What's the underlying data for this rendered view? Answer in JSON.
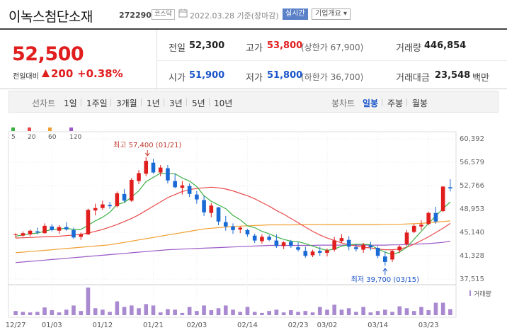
{
  "header": {
    "name": "이녹스첨단소재",
    "code": "272290",
    "market": "코스닥",
    "date": "2022.03.28  기준(장마감)",
    "realtime": "실시간",
    "overview": "기업개요 ▾"
  },
  "summary": {
    "price": "52,500",
    "change_label": "전일대비",
    "change": "200",
    "change_pct": "+0.38%",
    "prev_label": "전일",
    "prev": "52,300",
    "high_label": "고가",
    "high": "53,800",
    "upper_limit": "(상한가 67,900)",
    "volume_label": "거래량",
    "volume": "446,854",
    "open_label": "시가",
    "open": "51,900",
    "low_label": "저가",
    "low": "51,800",
    "lower_limit": "(하한가 36,700)",
    "value_label": "거래대금",
    "value": "23,548",
    "value_unit": "백만"
  },
  "tabs": {
    "line_label": "선차트",
    "periods": [
      "1일",
      "1주일",
      "3개월",
      "1년",
      "3년",
      "5년",
      "10년"
    ],
    "candle_label": "봉차트",
    "candles": [
      "일봉",
      "주봉",
      "월봉"
    ],
    "active_candle": "일봉"
  },
  "colors": {
    "up": "#e01e1e",
    "down": "#1a6ad6",
    "ma5": "#3cb043",
    "ma20": "#e84a4a",
    "ma60": "#f0a032",
    "ma120": "#9b59c6",
    "volume": "#a989cf"
  },
  "chart_data": {
    "type": "candlestick",
    "legend": [
      {
        "name": "5",
        "color": "#3cb043"
      },
      {
        "name": "20",
        "color": "#e84a4a"
      },
      {
        "name": "60",
        "color": "#f0a032"
      },
      {
        "name": "120",
        "color": "#9b59c6"
      }
    ],
    "y_ticks": [
      "60,392",
      "56,579",
      "52,766",
      "48,953",
      "45,140",
      "41,328",
      "37,515"
    ],
    "ylim": [
      37515,
      60392
    ],
    "x_ticks": [
      {
        "label": "12/27",
        "index": 0
      },
      {
        "label": "01/03",
        "index": 5
      },
      {
        "label": "01/12",
        "index": 12
      },
      {
        "label": "01/21",
        "index": 19
      },
      {
        "label": "02/03",
        "index": 25
      },
      {
        "label": "02/14",
        "index": 32
      },
      {
        "label": "02/23",
        "index": 39
      },
      {
        "label": "03/02",
        "index": 43
      },
      {
        "label": "03/14",
        "index": 50
      },
      {
        "label": "03/23",
        "index": 57
      }
    ],
    "annotation_high": {
      "text": "최고 57,400 (01/21)",
      "index": 18,
      "value": 57400
    },
    "annotation_low": {
      "text": "최저 39,700 (03/15)",
      "index": 51,
      "value": 39700
    },
    "volume_label": "거래량",
    "candles": [
      [
        44700,
        45000,
        44200,
        44800
      ],
      [
        44600,
        45300,
        44400,
        45000
      ],
      [
        44800,
        45600,
        44500,
        45400
      ],
      [
        45300,
        45900,
        44800,
        45100
      ],
      [
        45000,
        46600,
        44900,
        46200
      ],
      [
        46100,
        46500,
        45300,
        45500
      ],
      [
        45400,
        46300,
        44900,
        46000
      ],
      [
        46000,
        46800,
        45400,
        45600
      ],
      [
        45500,
        45900,
        44100,
        44300
      ],
      [
        44400,
        45100,
        43900,
        44800
      ],
      [
        44800,
        49000,
        44700,
        48800
      ],
      [
        48700,
        49800,
        47900,
        49100
      ],
      [
        49100,
        50300,
        48800,
        49700
      ],
      [
        49600,
        50100,
        49000,
        49400
      ],
      [
        49400,
        51800,
        49200,
        51500
      ],
      [
        51400,
        52200,
        50000,
        50300
      ],
      [
        50300,
        54000,
        50100,
        53700
      ],
      [
        53500,
        55300,
        53000,
        54800
      ],
      [
        54700,
        57400,
        54300,
        56800
      ],
      [
        56500,
        57100,
        54700,
        54900
      ],
      [
        54900,
        56100,
        54300,
        55700
      ],
      [
        55600,
        56100,
        53100,
        53600
      ],
      [
        53500,
        54700,
        52300,
        52500
      ],
      [
        52400,
        53500,
        51300,
        52800
      ],
      [
        52700,
        53100,
        50900,
        51400
      ],
      [
        51300,
        51900,
        49800,
        50500
      ],
      [
        50400,
        51100,
        47800,
        48400
      ],
      [
        48300,
        49900,
        47600,
        49500
      ],
      [
        49200,
        49300,
        46300,
        46900
      ],
      [
        46800,
        47800,
        45400,
        46100
      ],
      [
        46100,
        46600,
        44900,
        45500
      ],
      [
        45600,
        46100,
        45000,
        45900
      ],
      [
        45500,
        45700,
        44400,
        44800
      ],
      [
        44600,
        44900,
        43400,
        43800
      ],
      [
        43700,
        44800,
        43300,
        44400
      ],
      [
        44400,
        44700,
        43700,
        43900
      ],
      [
        43800,
        44800,
        42600,
        42900
      ],
      [
        42900,
        43700,
        42400,
        43500
      ],
      [
        43600,
        43900,
        42600,
        42900
      ],
      [
        42700,
        43500,
        42000,
        42300
      ],
      [
        42100,
        42800,
        41000,
        41300
      ],
      [
        41400,
        42300,
        41100,
        42000
      ],
      [
        42100,
        42800,
        41300,
        41800
      ],
      [
        41800,
        42500,
        41200,
        42200
      ],
      [
        42300,
        44400,
        42000,
        43800
      ],
      [
        43700,
        44800,
        43400,
        44200
      ],
      [
        43900,
        44500,
        42200,
        42800
      ],
      [
        42700,
        43200,
        42000,
        42400
      ],
      [
        42300,
        43400,
        41800,
        43100
      ],
      [
        43000,
        43600,
        42200,
        42700
      ],
      [
        42600,
        42900,
        40900,
        41300
      ],
      [
        41200,
        42000,
        39700,
        40300
      ],
      [
        40700,
        42300,
        40300,
        42100
      ],
      [
        42200,
        43000,
        41800,
        42800
      ],
      [
        43200,
        45500,
        42900,
        45100
      ],
      [
        45200,
        46500,
        45000,
        46200
      ],
      [
        46100,
        47100,
        45500,
        46400
      ],
      [
        46500,
        48500,
        46300,
        48300
      ],
      [
        48300,
        49300,
        46500,
        46900
      ],
      [
        48600,
        52700,
        48400,
        52600
      ],
      [
        52500,
        53800,
        51800,
        52300
      ]
    ],
    "ma5": [
      44500,
      44700,
      44900,
      45000,
      45300,
      45600,
      45700,
      45800,
      45600,
      45600,
      46300,
      47000,
      47600,
      48400,
      49700,
      50000,
      50900,
      51900,
      53400,
      54100,
      54800,
      54700,
      54700,
      54000,
      53500,
      52600,
      51100,
      50200,
      49600,
      49000,
      47900,
      47200,
      46200,
      45900,
      45300,
      44900,
      44400,
      44000,
      43700,
      43600,
      43300,
      42900,
      42500,
      42200,
      42400,
      42900,
      43100,
      43200,
      43200,
      43100,
      42400,
      41900,
      41500,
      41900,
      42700,
      44000,
      45300,
      46600,
      47800,
      49000,
      50100
    ],
    "ma20": [
      44200,
      44250,
      44300,
      44350,
      44400,
      44450,
      44500,
      44600,
      44700,
      44800,
      45000,
      45300,
      45600,
      46000,
      46400,
      46900,
      47400,
      48000,
      48700,
      49400,
      50100,
      50800,
      51300,
      51800,
      52100,
      52300,
      52400,
      52500,
      52400,
      52200,
      51900,
      51500,
      51100,
      50600,
      50000,
      49400,
      48700,
      48100,
      47400,
      46700,
      46000,
      45300,
      44700,
      44200,
      43800,
      43400,
      43100,
      42900,
      42700,
      42600,
      42400,
      42300,
      42300,
      42400,
      42700,
      43200,
      43800,
      44400,
      45100,
      45800,
      46600
    ],
    "ma60": [
      41800,
      41900,
      42000,
      42100,
      42200,
      42300,
      42400,
      42500,
      42600,
      42700,
      42800,
      42900,
      43000,
      43100,
      43300,
      43500,
      43700,
      43900,
      44100,
      44300,
      44500,
      44700,
      44900,
      45100,
      45300,
      45500,
      45700,
      45800,
      45900,
      46000,
      46100,
      46150,
      46200,
      46250,
      46300,
      46350,
      46350,
      46350,
      46350,
      46400,
      46400,
      46400,
      46400,
      46400,
      46400,
      46400,
      46400,
      46400,
      46400,
      46400,
      46400,
      46450,
      46450,
      46450,
      46500,
      46550,
      46600,
      46700,
      46800,
      46900,
      47000
    ],
    "ma120": [
      40200,
      40300,
      40400,
      40500,
      40600,
      40700,
      40800,
      40900,
      41000,
      41100,
      41200,
      41300,
      41400,
      41500,
      41600,
      41700,
      41800,
      41900,
      42000,
      42100,
      42200,
      42300,
      42350,
      42400,
      42450,
      42500,
      42550,
      42600,
      42650,
      42700,
      42750,
      42800,
      42850,
      42900,
      42950,
      43000,
      43000,
      43000,
      43000,
      43000,
      43000,
      43000,
      43050,
      43050,
      43050,
      43050,
      43050,
      43050,
      43050,
      43050,
      43050,
      43050,
      43100,
      43100,
      43150,
      43200,
      43250,
      43300,
      43400,
      43500,
      43700
    ],
    "volumes": [
      0.15,
      0.12,
      0.1,
      0.12,
      0.28,
      0.18,
      0.1,
      0.2,
      0.35,
      0.15,
      1.0,
      0.25,
      0.2,
      0.12,
      0.5,
      0.3,
      0.35,
      0.25,
      0.4,
      0.35,
      0.1,
      0.22,
      0.2,
      0.08,
      0.3,
      0.15,
      0.35,
      0.18,
      0.25,
      0.35,
      0.2,
      0.12,
      0.3,
      0.12,
      0.08,
      0.15,
      0.2,
      0.1,
      0.18,
      0.12,
      0.15,
      0.1,
      0.3,
      0.2,
      0.38,
      0.2,
      0.25,
      0.12,
      0.3,
      0.1,
      0.15,
      0.2,
      0.12,
      0.32,
      0.25,
      0.15,
      0.3,
      0.18,
      0.45,
      0.45,
      0.22
    ]
  }
}
